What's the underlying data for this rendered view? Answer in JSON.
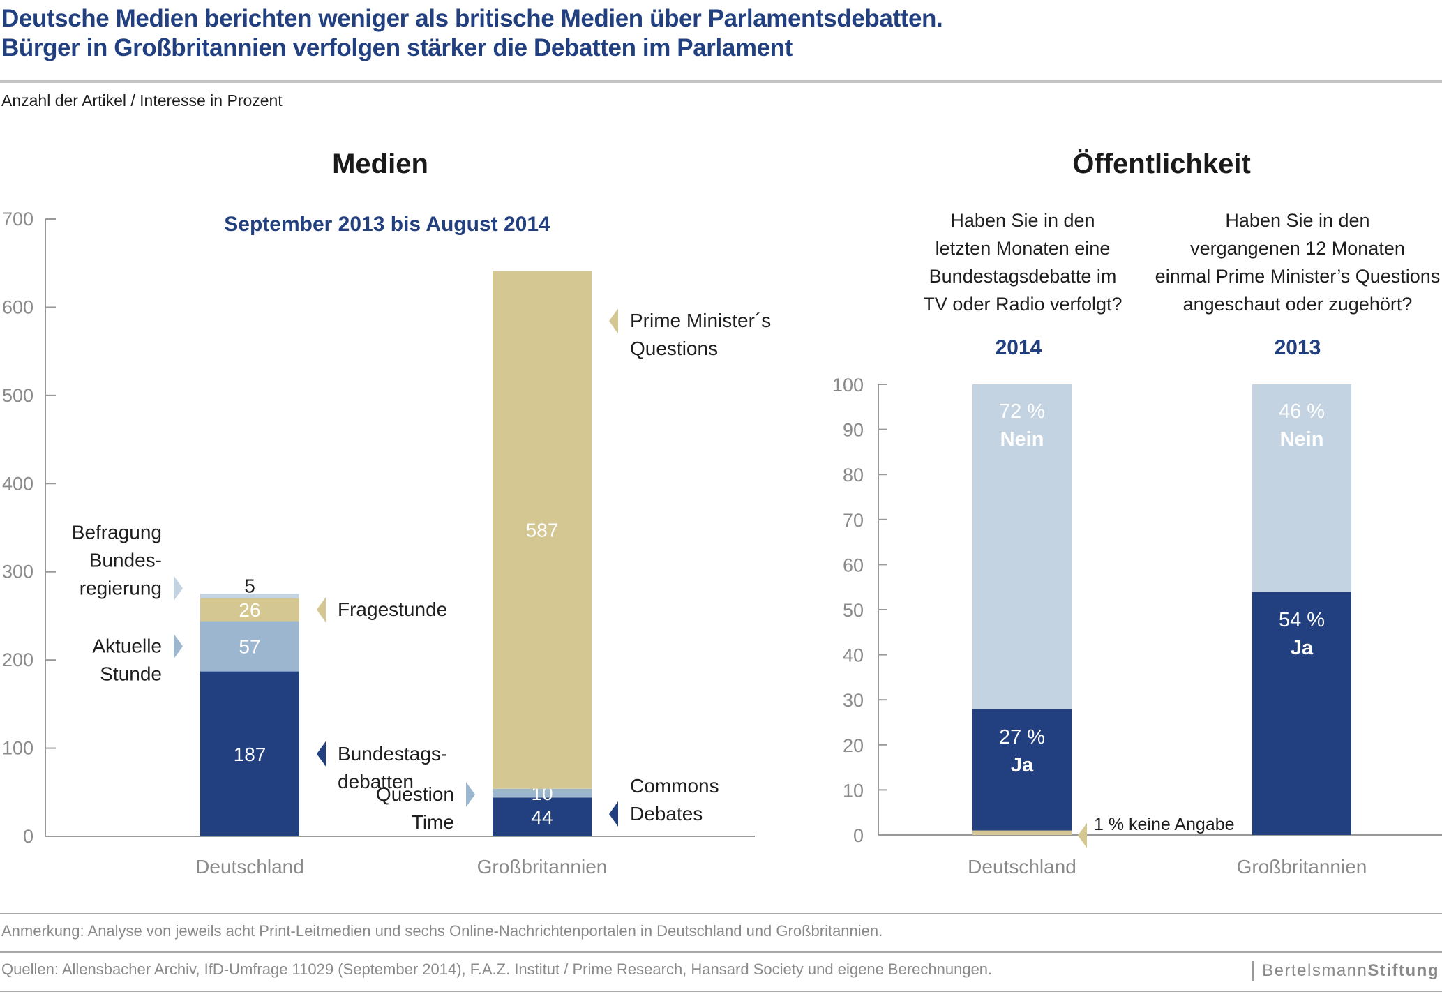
{
  "header": {
    "title_line1": "Deutsche Medien berichten weniger als britische Medien über Parlamentsdebatten.",
    "title_line2": "Bürger in Großbritannien verfolgen stärker die Debatten im Parlament",
    "subtitle": "Anzahl der Artikel / Interesse in Prozent"
  },
  "colors": {
    "dark_blue": "#22407f",
    "mid_blue": "#9db6cf",
    "light_blue": "#c3d3e2",
    "tan": "#d4c792",
    "axis": "#999999"
  },
  "chart_data": [
    {
      "type": "bar",
      "stacked": true,
      "title": "Medien",
      "subtitle": "September 2013 bis August 2014",
      "xlabel": "",
      "ylabel": "Anzahl der Artikel",
      "ylim": [
        0,
        700
      ],
      "yticks": [
        0,
        100,
        200,
        300,
        400,
        500,
        600,
        700
      ],
      "grid": false,
      "categories": [
        "Deutschland",
        "Großbritannien"
      ],
      "bars": [
        {
          "category": "Deutschland",
          "segments": [
            {
              "name": "Bundestags-debatten",
              "value": 187,
              "color": "dark_blue",
              "label_lines": [
                "Bundestags-",
                "debatten"
              ],
              "annotation_side": "right"
            },
            {
              "name": "Aktuelle Stunde",
              "value": 57,
              "color": "mid_blue",
              "label_lines": [
                "Aktuelle",
                "Stunde"
              ],
              "annotation_side": "left"
            },
            {
              "name": "Fragestunde",
              "value": 26,
              "color": "tan",
              "label_lines": [
                "Fragestunde"
              ],
              "annotation_side": "right"
            },
            {
              "name": "Befragung Bundesregierung",
              "value": 5,
              "color": "light_blue",
              "label_lines": [
                "Befragung",
                "Bundes-",
                "regierung"
              ],
              "annotation_side": "left"
            }
          ]
        },
        {
          "category": "Großbritannien",
          "segments": [
            {
              "name": "Commons Debates",
              "value": 44,
              "color": "dark_blue",
              "label_lines": [
                "Commons",
                "Debates"
              ],
              "annotation_side": "right"
            },
            {
              "name": "Question Time",
              "value": 10,
              "color": "mid_blue",
              "label_lines": [
                "Question",
                "Time"
              ],
              "annotation_side": "left"
            },
            {
              "name": "Prime Minister´s Questions",
              "value": 587,
              "color": "tan",
              "label_lines": [
                "Prime Minister´s",
                "Questions"
              ],
              "annotation_side": "right"
            }
          ]
        }
      ]
    },
    {
      "type": "bar",
      "stacked": true,
      "title": "Öffentlichkeit",
      "xlabel": "",
      "ylabel": "Prozent",
      "ylim": [
        0,
        100
      ],
      "yticks": [
        0,
        10,
        20,
        30,
        40,
        50,
        60,
        70,
        80,
        90,
        100
      ],
      "grid": false,
      "categories": [
        "Deutschland",
        "Großbritannien"
      ],
      "bars": [
        {
          "category": "Deutschland",
          "year": "2014",
          "question_lines": [
            "Haben Sie in den",
            "letzten Monaten eine",
            "Bundestagsdebatte im",
            "TV oder Radio verfolgt?"
          ],
          "segments": [
            {
              "name": "keine Angabe",
              "value": 1,
              "color": "tan",
              "pct_text": "1 %",
              "label": "keine Angabe"
            },
            {
              "name": "Ja",
              "value": 27,
              "color": "dark_blue",
              "pct_text": "27 %",
              "label": "Ja"
            },
            {
              "name": "Nein",
              "value": 72,
              "color": "light_blue",
              "pct_text": "72 %",
              "label": "Nein"
            }
          ]
        },
        {
          "category": "Großbritannien",
          "year": "2013",
          "question_lines": [
            "Haben Sie in den",
            "vergangenen 12 Monaten",
            "einmal Prime Minister’s Questions",
            "angeschaut oder zugehört?"
          ],
          "segments": [
            {
              "name": "Ja",
              "value": 54,
              "color": "dark_blue",
              "pct_text": "54 %",
              "label": "Ja"
            },
            {
              "name": "Nein",
              "value": 46,
              "color": "light_blue",
              "pct_text": "46 %",
              "label": "Nein"
            }
          ]
        }
      ],
      "annotations": [
        "1 % keine Angabe"
      ]
    }
  ],
  "footer": {
    "note": "Anmerkung: Analyse von jeweils acht Print-Leitmedien und sechs Online-Nachrichtenportalen in Deutschland und Großbritannien.",
    "sources": "Quellen: Allensbacher Archiv, IfD-Umfrage 11029 (September 2014), F.A.Z. Institut / Prime Research, Hansard Society und eigene Berechnungen.",
    "logo_light": "Bertelsmann",
    "logo_bold": "Stiftung"
  }
}
